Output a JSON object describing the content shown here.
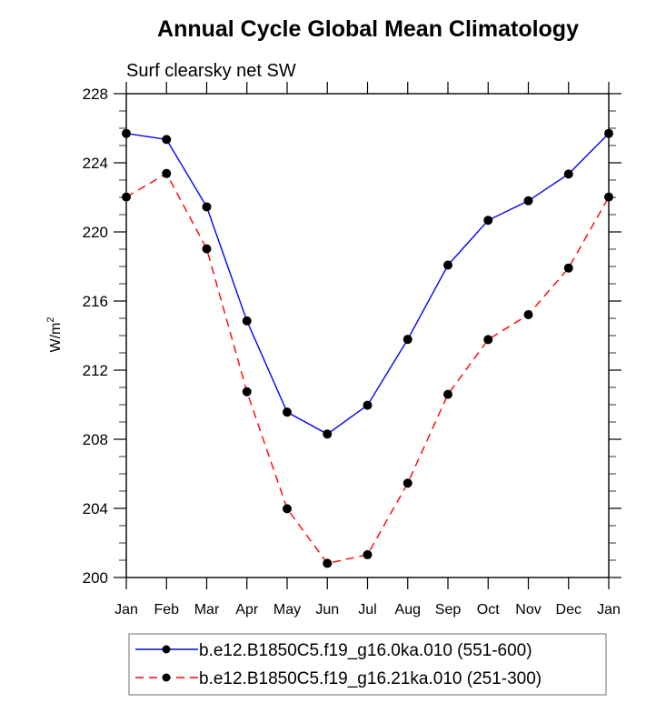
{
  "chart_data": {
    "type": "line",
    "title": "Annual Cycle Global Mean Climatology",
    "subtitle": "Surf clearsky net SW",
    "xlabel": "",
    "ylabel": "W/m",
    "ylabel_superscript": "2",
    "categories": [
      "Jan",
      "Feb",
      "Mar",
      "Apr",
      "May",
      "Jun",
      "Jul",
      "Aug",
      "Sep",
      "Oct",
      "Nov",
      "Dec",
      "Jan"
    ],
    "ylim": [
      200,
      228
    ],
    "yticks": [
      200,
      204,
      208,
      212,
      216,
      220,
      224,
      228
    ],
    "yminor_step": 1,
    "grid": false,
    "legend_position": "bottom",
    "series": [
      {
        "name": "b.e12.B1850C5.f19_g16.0ka.010 (551-600)",
        "color": "#0000ff",
        "dash": "solid",
        "marker": "filled-circle",
        "values": [
          225.7,
          225.35,
          221.45,
          214.85,
          209.57,
          208.3,
          209.97,
          213.78,
          218.08,
          220.67,
          221.8,
          223.35,
          225.7
        ]
      },
      {
        "name": "b.e12.B1850C5.f19_g16.21ka.010 (251-300)",
        "color": "#ff0000",
        "dash": "dashed",
        "marker": "filled-circle",
        "values": [
          222.02,
          223.38,
          219.02,
          210.75,
          203.98,
          200.82,
          201.32,
          205.46,
          210.6,
          213.77,
          215.21,
          217.91,
          222.02
        ]
      }
    ]
  }
}
